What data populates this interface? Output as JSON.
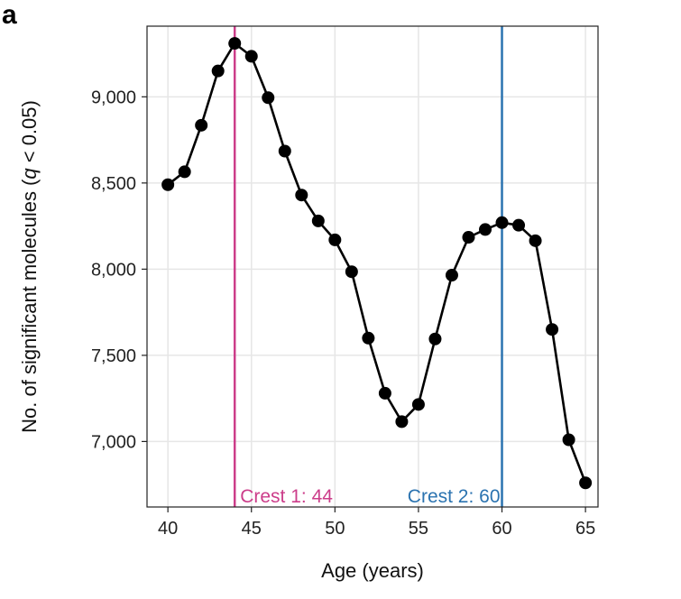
{
  "panel_label": "a",
  "chart_data": {
    "type": "line",
    "xlabel": "Age (years)",
    "ylabel": "No. of significant molecules (q < 0.05)",
    "xlim": [
      38.75,
      65.75
    ],
    "ylim": [
      6620,
      9410
    ],
    "grid": true,
    "x_ticks": [
      40,
      45,
      50,
      55,
      60,
      65
    ],
    "y_ticks": [
      7000,
      7500,
      8000,
      8500,
      9000
    ],
    "x_tick_labels": [
      "40",
      "45",
      "50",
      "55",
      "60",
      "65"
    ],
    "y_tick_labels": [
      "7,000",
      "7,500",
      "8,000",
      "8,500",
      "9,000"
    ],
    "x": [
      40,
      41,
      42,
      43,
      44,
      45,
      46,
      47,
      48,
      49,
      50,
      51,
      52,
      53,
      54,
      55,
      56,
      57,
      58,
      59,
      60,
      61,
      62,
      63,
      64,
      65
    ],
    "y": [
      8490,
      8565,
      8835,
      9150,
      9310,
      9235,
      8995,
      8685,
      8430,
      8280,
      8170,
      7985,
      7600,
      7280,
      7115,
      7215,
      7595,
      7965,
      8185,
      8230,
      8270,
      8255,
      8165,
      7650,
      7010,
      6760
    ],
    "crests": [
      {
        "x": 44,
        "label": "Crest 1: 44",
        "color": "#cc3d8a"
      },
      {
        "x": 60,
        "label": "Crest 2: 60",
        "color": "#2b73b0"
      }
    ],
    "line_color": "#000000",
    "grid_color": "#e6e6e6"
  }
}
